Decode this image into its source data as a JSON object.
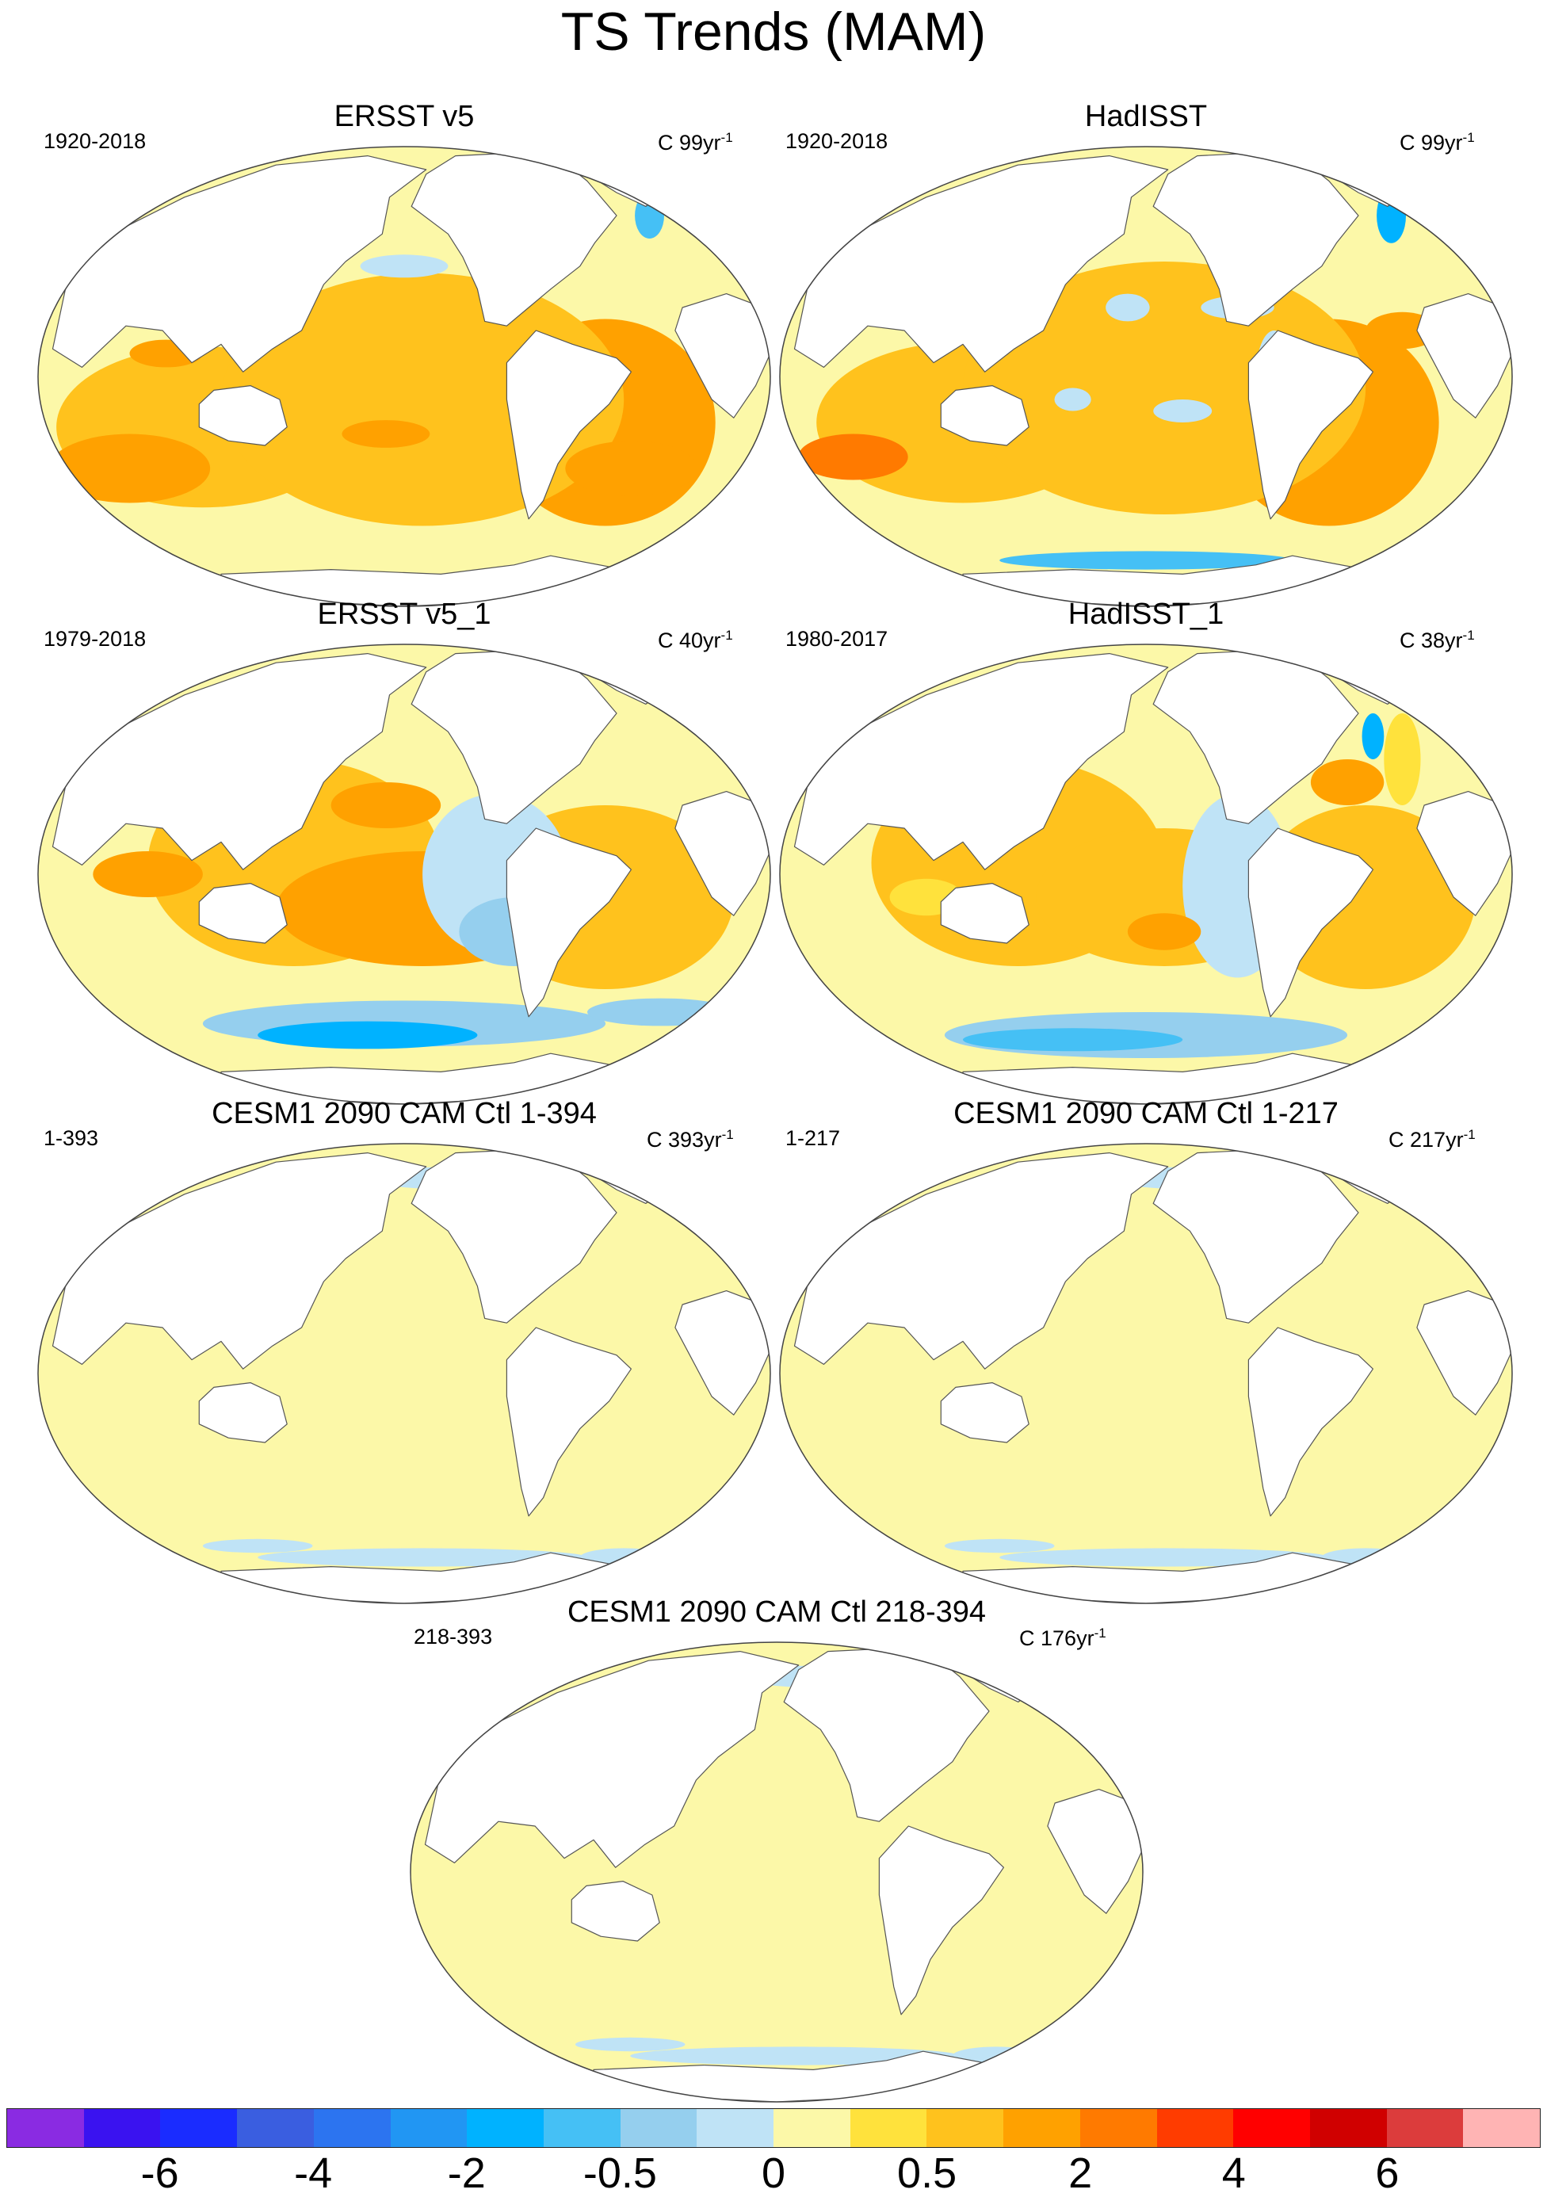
{
  "figure": {
    "title": "TS Trends (MAM)"
  },
  "panels": [
    {
      "title": "ERSST v5",
      "years": "1920-2018",
      "units_prefix": "C",
      "units_value": "99yr",
      "units_exp": "-1",
      "pattern": "warm"
    },
    {
      "title": "HadISST",
      "years": "1920-2018",
      "units_prefix": "C",
      "units_value": "99yr",
      "units_exp": "-1",
      "pattern": "warm-noisy"
    },
    {
      "title": "ERSST v5_1",
      "years": "1979-2018",
      "units_prefix": "C",
      "units_value": "40yr",
      "units_exp": "-1",
      "pattern": "lanina"
    },
    {
      "title": "HadISST_1",
      "years": "1980-2017",
      "units_prefix": "C",
      "units_value": "38yr",
      "units_exp": "-1",
      "pattern": "lanina-noisy"
    },
    {
      "title": "CESM1 2090 CAM Ctl 1-394",
      "years": "1-393",
      "units_prefix": "C",
      "units_value": "393yr",
      "units_exp": "-1",
      "pattern": "neutral"
    },
    {
      "title": "CESM1 2090 CAM Ctl 1-217",
      "years": "1-217",
      "units_prefix": "C",
      "units_value": "217yr",
      "units_exp": "-1",
      "pattern": "neutral"
    },
    {
      "title": "CESM1 2090 CAM Ctl 218-394",
      "years": "218-393",
      "units_prefix": "C",
      "units_value": "176yr",
      "units_exp": "-1",
      "pattern": "neutral"
    }
  ],
  "colorbar": {
    "colors": [
      "#8a2be2",
      "#3a12f0",
      "#1a2cff",
      "#3a5ee0",
      "#2c74f0",
      "#2196f3",
      "#00b2ff",
      "#45c0f5",
      "#95cfee",
      "#bfe3f6",
      "#fcf8a8",
      "#ffe23c",
      "#ffc21d",
      "#ffa100",
      "#ff7a00",
      "#ff3c00",
      "#ff0000",
      "#d00000",
      "#dc3c3c",
      "#ffb4b4"
    ],
    "labels": [
      "-6",
      "-4",
      "-2",
      "-0.5",
      "0",
      "0.5",
      "2",
      "4",
      "6"
    ]
  }
}
